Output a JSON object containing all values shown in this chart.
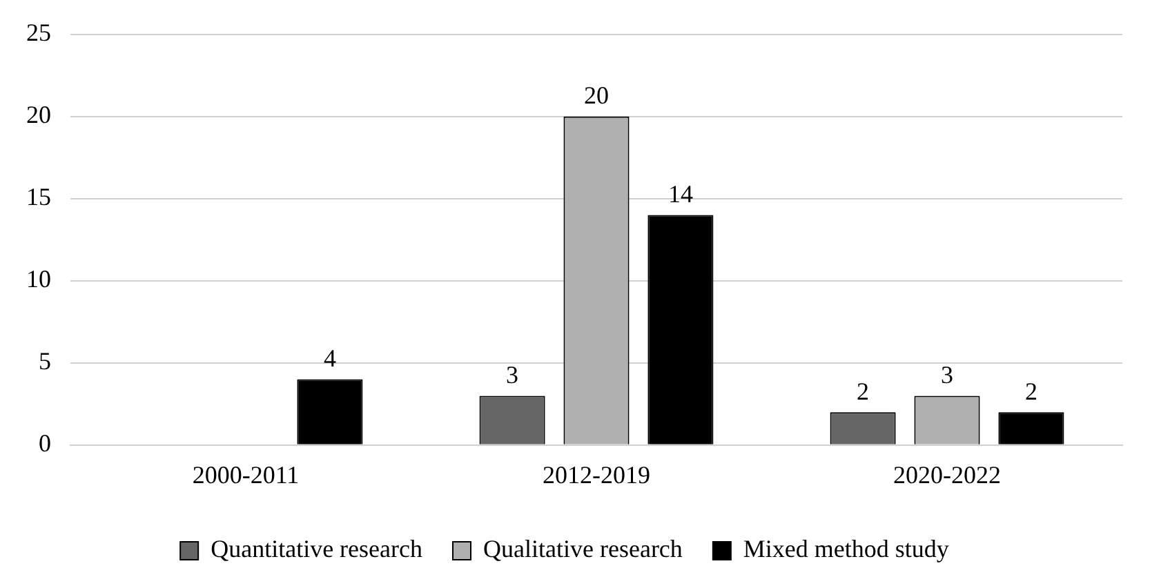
{
  "chart_data": {
    "type": "bar",
    "categories": [
      "2000-2011",
      "2012-2019",
      "2020-2022"
    ],
    "series": [
      {
        "name": "Quantitative research",
        "color": "#666666",
        "values": [
          0,
          3,
          2
        ],
        "value_labels": [
          null,
          "3",
          "2"
        ]
      },
      {
        "name": "Qualitative research",
        "color": "#b0b0b0",
        "values": [
          0,
          20,
          3
        ],
        "value_labels": [
          null,
          "20",
          "3"
        ]
      },
      {
        "name": "Mixed method study",
        "color": "#000000",
        "values": [
          4,
          14,
          2
        ],
        "value_labels": [
          "4",
          "14",
          "2"
        ]
      }
    ],
    "ylim": [
      0,
      25
    ],
    "yticks": [
      0,
      5,
      10,
      15,
      20,
      25
    ],
    "grid": "y",
    "legend": "bottom"
  }
}
